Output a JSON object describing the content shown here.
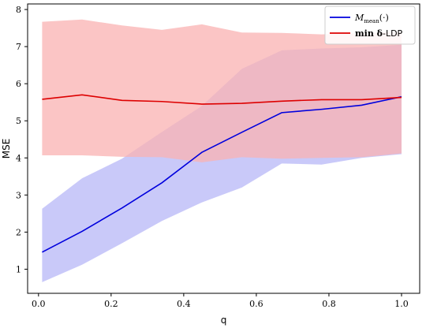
{
  "chart_data": {
    "type": "line",
    "xlabel": "q",
    "ylabel": "MSE",
    "xlim": [
      -0.03,
      1.05
    ],
    "ylim": [
      0.35,
      8.15
    ],
    "xticks": [
      "0.0",
      "0.2",
      "0.4",
      "0.6",
      "0.8",
      "1.0"
    ],
    "xtick_values": [
      0,
      0.2,
      0.4,
      0.6,
      0.8,
      1.0
    ],
    "yticks": [
      "1",
      "2",
      "3",
      "4",
      "5",
      "6",
      "7",
      "8"
    ],
    "ytick_values": [
      1,
      2,
      3,
      4,
      5,
      6,
      7,
      8
    ],
    "grid": false,
    "legend_position": "top-right",
    "x": [
      0.01,
      0.12,
      0.23,
      0.34,
      0.45,
      0.56,
      0.67,
      0.78,
      0.89,
      1.0
    ],
    "series": [
      {
        "name": "M_mean(·)",
        "legend_main": "M",
        "legend_sub": "mean",
        "legend_suffix": "(·)",
        "color": "#0000dd",
        "band_color": "#b7b7f7",
        "values": [
          1.46,
          2.02,
          2.65,
          3.33,
          4.15,
          4.69,
          5.22,
          5.31,
          5.42,
          5.65
        ],
        "lower": [
          0.65,
          1.12,
          1.7,
          2.3,
          2.8,
          3.2,
          3.85,
          3.82,
          4.0,
          4.1
        ],
        "upper": [
          2.63,
          3.45,
          3.98,
          4.7,
          5.4,
          6.4,
          6.9,
          6.95,
          6.98,
          7.05
        ]
      },
      {
        "name": "min δ-LDP",
        "legend_main": "min δ",
        "legend_suffix": "-LDP",
        "color": "#dd0000",
        "band_color": "#f9b2b2",
        "values": [
          5.58,
          5.7,
          5.55,
          5.52,
          5.45,
          5.47,
          5.53,
          5.57,
          5.57,
          5.63
        ],
        "lower": [
          4.07,
          4.07,
          4.03,
          4.02,
          3.88,
          4.02,
          3.98,
          4.0,
          4.02,
          4.12
        ],
        "upper": [
          7.67,
          7.73,
          7.57,
          7.45,
          7.6,
          7.38,
          7.37,
          7.33,
          7.37,
          7.4
        ]
      }
    ]
  }
}
